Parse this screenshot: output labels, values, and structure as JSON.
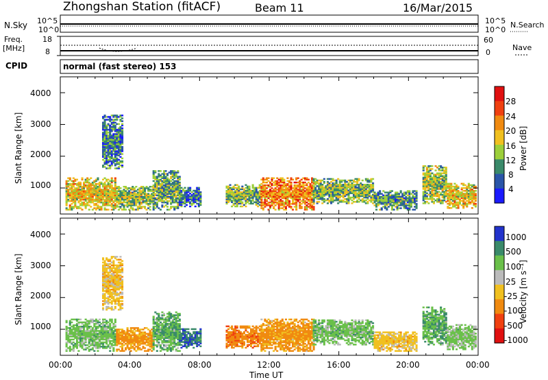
{
  "header": {
    "station": "Zhongshan Station (fitACF)",
    "beam": "Beam 11",
    "date": "16/Mar/2015"
  },
  "top_panels": {
    "nsky_label": "N.Sky",
    "nsky_ticks": [
      "10^5",
      "10^0"
    ],
    "nsearch_label": "N.Search",
    "nsearch_ticks": [
      "10^5",
      "10^0"
    ],
    "freq_label_line1": "Freq.",
    "freq_label_line2": "[MHz]",
    "freq_ticks": [
      "18",
      "8"
    ],
    "nave_label": "Nave",
    "nave_ticks": [
      "60",
      "0"
    ],
    "cpid_label": "CPID",
    "cpid_text": "normal (fast stereo) 153"
  },
  "axes": {
    "ylabel": "Slant Range [km]",
    "xlabel": "Time UT",
    "y_ticks": [
      "1000",
      "2000",
      "3000",
      "4000"
    ],
    "x_ticks": [
      "00:00",
      "04:00",
      "08:00",
      "12:00",
      "16:00",
      "20:00",
      "00:00"
    ]
  },
  "power_scale": {
    "label": "Power [dB]",
    "ticks": [
      "4",
      "8",
      "12",
      "16",
      "20",
      "24",
      "28"
    ]
  },
  "velocity_scale": {
    "label": "Velocity [m s⁻¹]",
    "ticks": [
      "1000",
      "500",
      "100",
      "25",
      "-25",
      "-100",
      "-500",
      "-1000"
    ]
  },
  "chart_data": [
    {
      "type": "heatmap",
      "name": "Power",
      "x_range_hours": [
        0,
        24
      ],
      "y_range_km": [
        180,
        4500
      ],
      "colorbar_range_db": [
        0,
        32
      ],
      "colors": [
        "#1a1aff",
        "#2a55a8",
        "#3a8a6a",
        "#9ccf3a",
        "#f0c020",
        "#f08a10",
        "#f04010",
        "#e01010"
      ],
      "echo_regions": [
        {
          "t0": 0.3,
          "t1": 3.2,
          "r0": 300,
          "r1": 1300,
          "p": 18
        },
        {
          "t0": 3.2,
          "t1": 5.3,
          "r0": 300,
          "r1": 1050,
          "p": 14
        },
        {
          "t0": 5.3,
          "t1": 6.8,
          "r0": 300,
          "r1": 1550,
          "p": 12
        },
        {
          "t0": 6.8,
          "t1": 8.0,
          "r0": 400,
          "r1": 1000,
          "p": 8
        },
        {
          "t0": 9.5,
          "t1": 11.5,
          "r0": 400,
          "r1": 1100,
          "p": 13
        },
        {
          "t0": 11.5,
          "t1": 14.5,
          "r0": 300,
          "r1": 1300,
          "p": 22
        },
        {
          "t0": 14.5,
          "t1": 18.0,
          "r0": 500,
          "r1": 1300,
          "p": 13
        },
        {
          "t0": 18.0,
          "t1": 20.5,
          "r0": 300,
          "r1": 900,
          "p": 10
        },
        {
          "t0": 20.8,
          "t1": 22.2,
          "r0": 500,
          "r1": 1700,
          "p": 14
        },
        {
          "t0": 22.2,
          "t1": 23.9,
          "r0": 350,
          "r1": 1150,
          "p": 18
        },
        {
          "t0": 2.4,
          "t1": 3.6,
          "r0": 1600,
          "r1": 3300,
          "p": 8
        }
      ]
    },
    {
      "type": "heatmap",
      "name": "Velocity",
      "x_range_hours": [
        0,
        24
      ],
      "y_range_km": [
        180,
        4500
      ],
      "colors": [
        "#2233cc",
        "#3a8a6a",
        "#6ac04a",
        "#bbbbbb",
        "#f0c020",
        "#f08a10",
        "#f04010",
        "#e01010"
      ],
      "echo_regions": [
        {
          "t0": 0.3,
          "t1": 3.2,
          "r0": 300,
          "r1": 1300,
          "v": 60
        },
        {
          "t0": 3.2,
          "t1": 5.3,
          "r0": 300,
          "r1": 1050,
          "v": -150
        },
        {
          "t0": 5.3,
          "t1": 6.8,
          "r0": 300,
          "r1": 1550,
          "v": 80
        },
        {
          "t0": 6.8,
          "t1": 8.0,
          "r0": 400,
          "r1": 1000,
          "v": 400
        },
        {
          "t0": 9.5,
          "t1": 11.5,
          "r0": 400,
          "r1": 1100,
          "v": -350
        },
        {
          "t0": 11.5,
          "t1": 14.5,
          "r0": 300,
          "r1": 1300,
          "v": -150
        },
        {
          "t0": 14.5,
          "t1": 18.0,
          "r0": 500,
          "r1": 1300,
          "v": 60
        },
        {
          "t0": 18.0,
          "t1": 20.5,
          "r0": 300,
          "r1": 900,
          "v": -60
        },
        {
          "t0": 20.8,
          "t1": 22.2,
          "r0": 500,
          "r1": 1700,
          "v": 90
        },
        {
          "t0": 22.2,
          "t1": 23.9,
          "r0": 350,
          "r1": 1150,
          "v": 40
        },
        {
          "t0": 2.4,
          "t1": 3.6,
          "r0": 1600,
          "r1": 3300,
          "v": -60
        }
      ]
    }
  ]
}
